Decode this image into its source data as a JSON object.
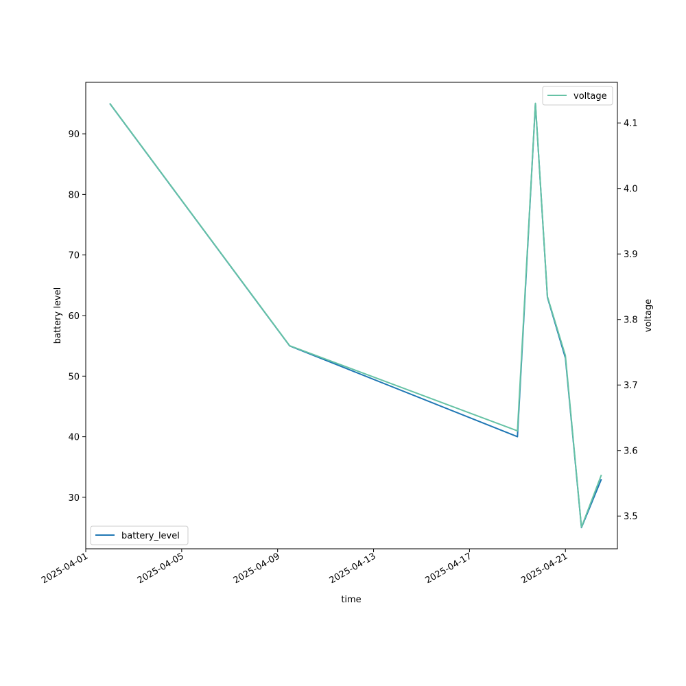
{
  "chart_data": {
    "type": "line",
    "title": "",
    "xlabel": "time",
    "ylabel": "battery level",
    "y2label": "voltage",
    "x": [
      "2025-04-02",
      "2025-04-09 12:00",
      "2025-04-19",
      "2025-04-19 18:00",
      "2025-04-20 06:00",
      "2025-04-21",
      "2025-04-21 16:00",
      "2025-04-22 12:00"
    ],
    "x_ticks": [
      "2025-04-01",
      "2025-04-05",
      "2025-04-09",
      "2025-04-13",
      "2025-04-17",
      "2025-04-21"
    ],
    "xlim": [
      "2025-04-01",
      "2025-04-23 04:00"
    ],
    "y_ticks": [
      30,
      40,
      50,
      60,
      70,
      80,
      90
    ],
    "ylim": [
      21.5,
      98.5
    ],
    "y2_ticks": [
      3.5,
      3.6,
      3.7,
      3.8,
      3.9,
      4.0,
      4.1
    ],
    "y2lim": [
      3.45,
      4.162
    ],
    "series": [
      {
        "name": "battery_level",
        "axis": "left",
        "color": "#1f77b4",
        "values": [
          95,
          55,
          40,
          95,
          63,
          53,
          25,
          33
        ]
      },
      {
        "name": "voltage",
        "axis": "right",
        "color": "#66c2a5",
        "values": [
          4.13,
          3.76,
          3.63,
          4.13,
          3.835,
          3.745,
          3.483,
          3.563
        ]
      }
    ],
    "legends": [
      {
        "series": "battery_level",
        "placement": "lower left"
      },
      {
        "series": "voltage",
        "placement": "upper right"
      }
    ],
    "grid": false
  }
}
